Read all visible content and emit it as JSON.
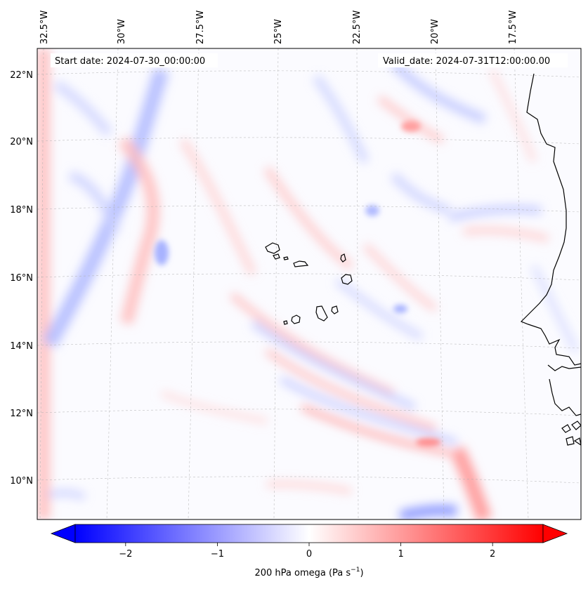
{
  "map": {
    "start_label": "Start date: 2024-07-30_00:00:00",
    "valid_label": "Valid_date: 2024-07-31T12:00:00.00",
    "top_ticks": [
      "32.5°W",
      "30°W",
      "27.5°W",
      "25°W",
      "22.5°W",
      "20°W",
      "17.5°W"
    ],
    "left_ticks": [
      "22°N",
      "20°N",
      "18°N",
      "16°N",
      "14°N",
      "12°N",
      "10°N"
    ],
    "coastline_color": "#000000",
    "gridline_color": "#b0b0b0"
  },
  "colorbar": {
    "label_main": "200 hPa omega (Pa s",
    "label_exp": "−1",
    "label_close": ")",
    "ticks": [
      {
        "value": -2,
        "label": "−2"
      },
      {
        "value": -1,
        "label": "−1"
      },
      {
        "value": 0,
        "label": "0"
      },
      {
        "value": 1,
        "label": "1"
      },
      {
        "value": 2,
        "label": "2"
      }
    ],
    "range": [
      -2.55,
      2.55
    ],
    "extend": "both",
    "colormap": "bwr",
    "min_color": "#0000ff",
    "mid_color": "#ffffff",
    "max_color": "#ff0000"
  }
}
